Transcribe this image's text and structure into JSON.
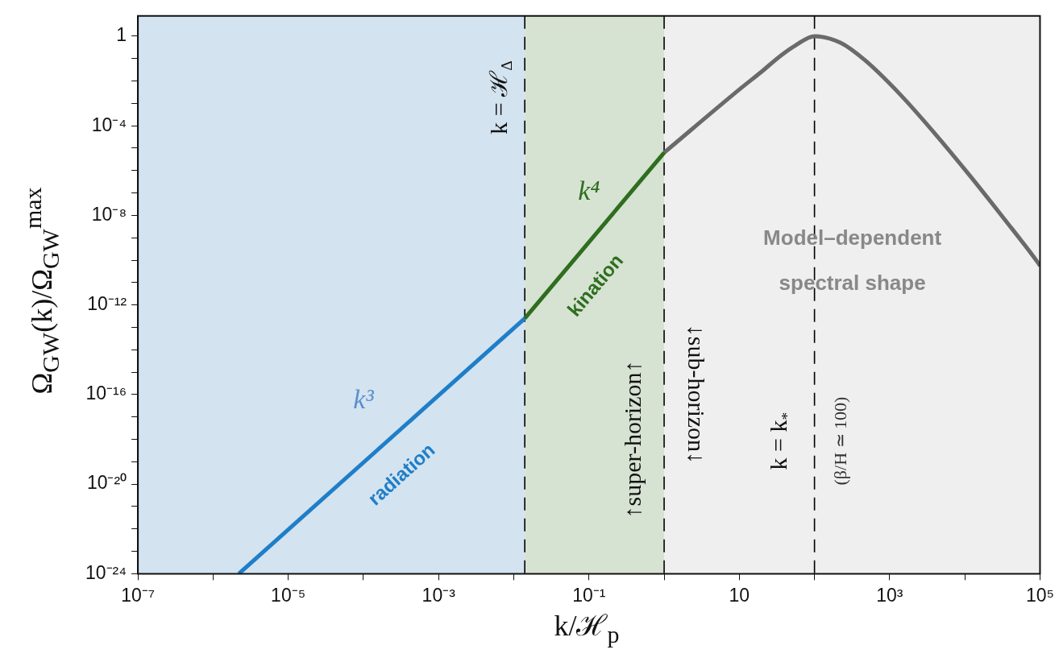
{
  "chart_data": {
    "type": "line",
    "xlabel": "k/ℋ$_{p}$",
    "ylabel": "Ω$_{GW}$(k)/Ω$_{GW}$$^{max}$",
    "log": "xy",
    "xlim": [
      1e-07,
      100000.0
    ],
    "ylim": [
      1e-24,
      8
    ],
    "xticks": [
      {
        "value": 1e-07,
        "label": "10⁻⁷"
      },
      {
        "value": 1e-06,
        "label": null
      },
      {
        "value": 1e-05,
        "label": "10⁻⁵"
      },
      {
        "value": 0.0001,
        "label": null
      },
      {
        "value": 0.001,
        "label": "10⁻³"
      },
      {
        "value": 0.01,
        "label": null
      },
      {
        "value": 0.1,
        "label": "10⁻¹"
      },
      {
        "value": 1,
        "label": null
      },
      {
        "value": 10,
        "label": "10"
      },
      {
        "value": 100,
        "label": null
      },
      {
        "value": 1000,
        "label": "10³"
      },
      {
        "value": 10000,
        "label": null
      },
      {
        "value": 100000,
        "label": "10⁵"
      }
    ],
    "yticks": [
      {
        "value": 1e-24,
        "label": "10⁻²⁴"
      },
      {
        "value": 1e-23,
        "label": null
      },
      {
        "value": 1e-22,
        "label": null
      },
      {
        "value": 1e-21,
        "label": null
      },
      {
        "value": 1e-20,
        "label": "10⁻²⁰"
      },
      {
        "value": 1e-19,
        "label": null
      },
      {
        "value": 1e-18,
        "label": null
      },
      {
        "value": 1e-17,
        "label": null
      },
      {
        "value": 1e-16,
        "label": "10⁻¹⁶"
      },
      {
        "value": 1e-15,
        "label": null
      },
      {
        "value": 1e-14,
        "label": null
      },
      {
        "value": 1e-13,
        "label": null
      },
      {
        "value": 1e-12,
        "label": "10⁻¹²"
      },
      {
        "value": 1e-11,
        "label": null
      },
      {
        "value": 1e-10,
        "label": null
      },
      {
        "value": 1e-09,
        "label": null
      },
      {
        "value": 1e-08,
        "label": "10⁻⁸"
      },
      {
        "value": 1e-07,
        "label": null
      },
      {
        "value": 1e-06,
        "label": null
      },
      {
        "value": 1e-05,
        "label": null
      },
      {
        "value": 0.0001,
        "label": "10⁻⁴"
      },
      {
        "value": 0.001,
        "label": null
      },
      {
        "value": 0.01,
        "label": null
      },
      {
        "value": 0.1,
        "label": null
      },
      {
        "value": 1,
        "label": "1"
      }
    ],
    "series": [
      {
        "x": [
          2.2e-06,
          0.014
        ],
        "values": [
          1e-24,
          2.5e-13
        ],
        "color": "#1f7ec8"
      },
      {
        "x": [
          0.014,
          1
        ],
        "values": [
          2.5e-13,
          6.3e-06
        ],
        "color": "#2e6e1e"
      },
      {
        "x": [
          1,
          10.7,
          19.5,
          36,
          56,
          100,
          224,
          468,
          1350,
          3890,
          11500,
          32400,
          93300,
          100000
        ],
        "values": [
          6.3e-06,
          0.005,
          0.025,
          0.14,
          0.39,
          1,
          0.5,
          0.085,
          0.0027,
          5e-05,
          6.3e-07,
          7.9e-09,
          7.9e-11,
          5.6e-11
        ],
        "color": "#6a6a6a"
      }
    ],
    "bands": [
      {
        "axis": "x",
        "from": 1e-07,
        "to": 0.014,
        "color": "#d3e3f0"
      },
      {
        "axis": "x",
        "from": 0.014,
        "to": 1,
        "color": "#d6e2d2"
      },
      {
        "axis": "x",
        "from": 1,
        "to": 100000,
        "color": "#efefef"
      }
    ],
    "ref_lines": [
      {
        "axis": "x",
        "value": 0.014,
        "label": "k = ℋ$_{Δ}$",
        "color": "#000000",
        "line_style": "dashed"
      },
      {
        "axis": "x",
        "value": 1,
        "color": "#000000",
        "line_style": "dashed"
      },
      {
        "axis": "x",
        "value": 100,
        "label": "k = k$_{*}$",
        "color": "#000000",
        "line_style": "dashed"
      }
    ],
    "annotations": [
      "k³",
      "radiation",
      "k⁴",
      "kination",
      "Model–dependent",
      "spectral shape",
      "↑super-horizon↑",
      "↓sub-horizon↓",
      "(β/H ≃ 100)"
    ]
  }
}
